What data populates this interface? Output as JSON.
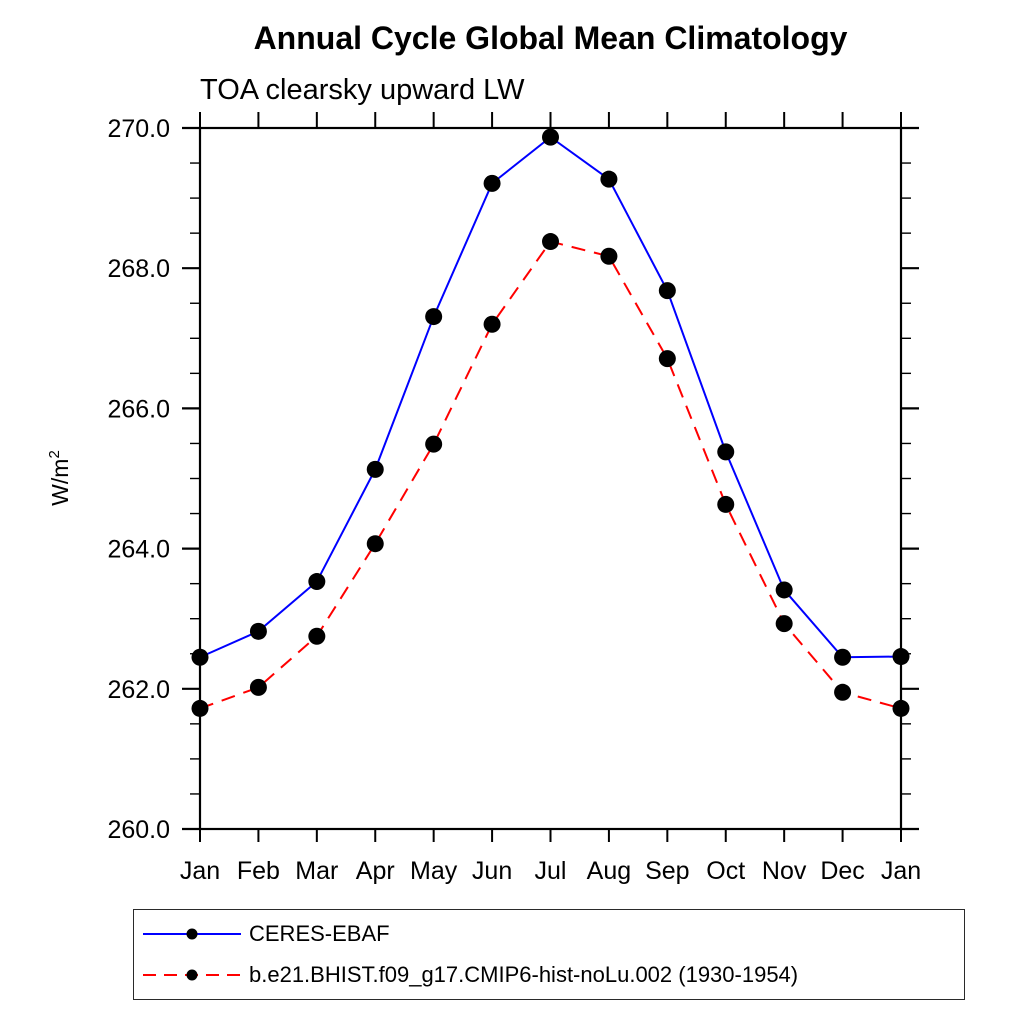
{
  "header": {
    "title": "Annual Cycle Global Mean Climatology",
    "subtitle": "TOA clearsky upward LW"
  },
  "chart_data": {
    "type": "line",
    "categories": [
      "Jan",
      "Feb",
      "Mar",
      "Apr",
      "May",
      "Jun",
      "Jul",
      "Aug",
      "Sep",
      "Oct",
      "Nov",
      "Dec",
      "Jan"
    ],
    "series": [
      {
        "name": "CERES-EBAF",
        "color": "#0000ff",
        "line_style": "solid",
        "marker": "filled-circle",
        "marker_color": "#000000",
        "values": [
          262.45,
          262.82,
          263.53,
          265.13,
          267.31,
          269.21,
          269.87,
          269.27,
          267.68,
          265.38,
          263.41,
          262.45,
          262.46
        ]
      },
      {
        "name": "b.e21.BHIST.f09_g17.CMIP6-hist-noLu.002 (1930-1954)",
        "color": "#ff0000",
        "line_style": "dashed",
        "marker": "filled-circle",
        "marker_color": "#000000",
        "values": [
          261.72,
          262.02,
          262.75,
          264.07,
          265.49,
          267.2,
          268.38,
          268.17,
          266.71,
          264.63,
          262.93,
          261.95,
          261.72
        ]
      }
    ],
    "title": "Annual Cycle Global Mean Climatology",
    "subtitle": "TOA clearsky upward LW",
    "xlabel": "",
    "ylabel": "W/m²",
    "ylim": [
      260.0,
      270.0
    ],
    "ytick_major_step": 2.0,
    "ytick_minor_step": 0.5,
    "ytick_labels": [
      "260.0",
      "262.0",
      "264.0",
      "266.0",
      "268.0",
      "270.0"
    ],
    "grid": false,
    "axis_color": "#000000",
    "legend_position": "bottom-left-box"
  }
}
